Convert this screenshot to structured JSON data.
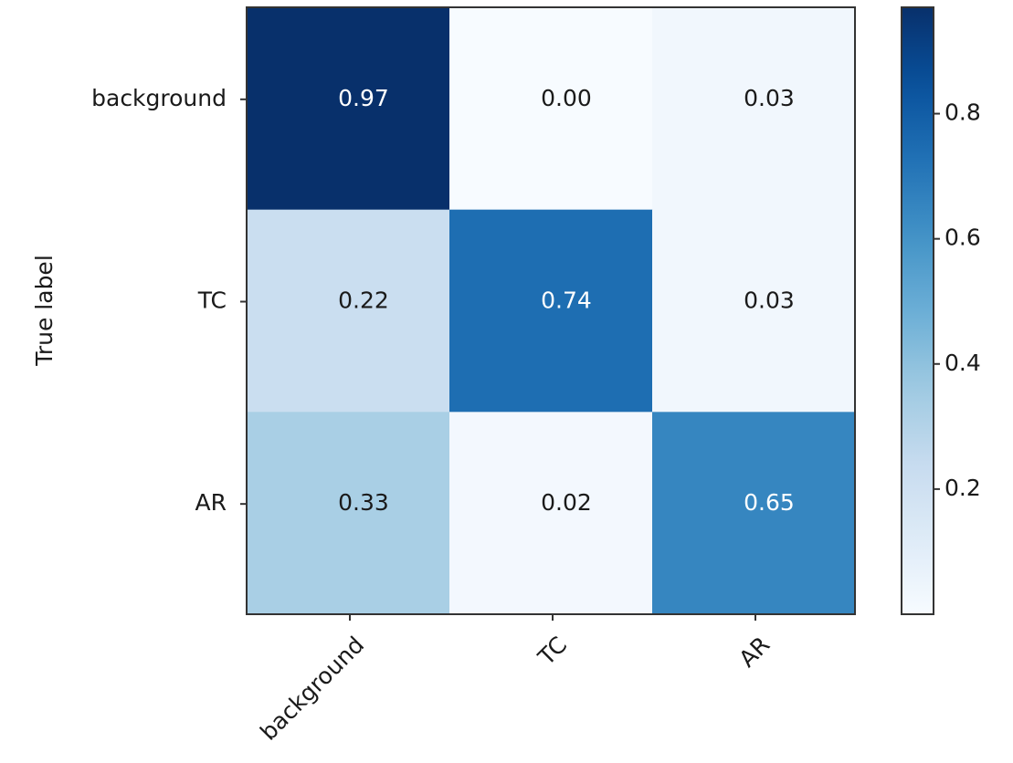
{
  "chart_data": {
    "type": "heatmap",
    "title": "",
    "xlabel": "",
    "ylabel": "True label",
    "rows": [
      "background",
      "TC",
      "AR"
    ],
    "cols": [
      "background",
      "TC",
      "AR"
    ],
    "values": [
      [
        0.97,
        0.0,
        0.03
      ],
      [
        0.22,
        0.74,
        0.03
      ],
      [
        0.33,
        0.02,
        0.65
      ]
    ],
    "value_labels": [
      [
        "0.97",
        "0.00",
        "0.03"
      ],
      [
        "0.22",
        "0.74",
        "0.03"
      ],
      [
        "0.33",
        "0.02",
        "0.65"
      ]
    ],
    "colormap": "Blues",
    "color_low": "#f7fbff",
    "color_high": "#08306b",
    "vmin": 0.0,
    "vmax": 0.97,
    "colorbar_ticks": [
      0.2,
      0.4,
      0.6,
      0.8
    ],
    "colorbar_tick_labels": [
      "0.2",
      "0.4",
      "0.6",
      "0.8"
    ],
    "text_color_dark": "#1a1a1a",
    "text_color_light": "#ffffff",
    "grid": false
  }
}
